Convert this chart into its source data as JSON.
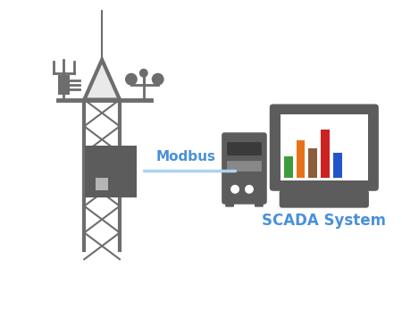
{
  "bg_color": "#ffffff",
  "tower_color": "#6d6d6d",
  "device_color": "#5c5c5c",
  "line_color": "#aad4f0",
  "modbus_text_color": "#4a90d9",
  "scada_text_color": "#4a90d9",
  "bar_colors": [
    "#3d9c3d",
    "#e8721a",
    "#8b5e3c",
    "#cc2222",
    "#2255cc"
  ],
  "modbus_label": "Modbus",
  "scada_label": "SCADA System",
  "figsize": [
    4.5,
    3.66
  ],
  "dpi": 100
}
